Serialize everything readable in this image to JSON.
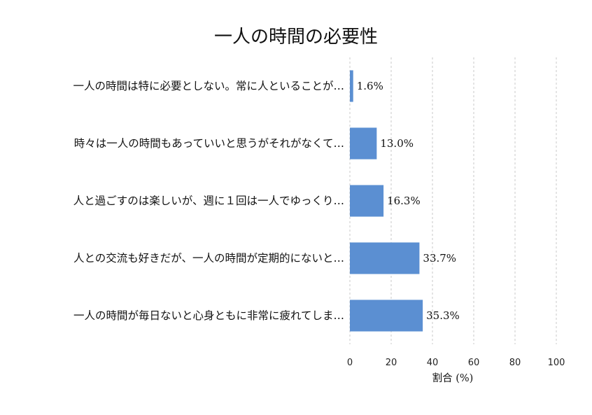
{
  "chart_data": {
    "type": "bar",
    "orientation": "horizontal",
    "title": "一人の時間の必要性",
    "xlabel": "割合 (%)",
    "ylabel": "",
    "xlim": [
      0,
      100
    ],
    "xticks": [
      "0",
      "20",
      "40",
      "60",
      "80",
      "100"
    ],
    "grid": "x-dashed",
    "categories": [
      "一人の時間は特に必要としない。常に人といることが…",
      "時々は一人の時間もあっていいと思うがそれがなくて…",
      "人と過ごすのは楽しいが、週に１回は一人でゆっくり…",
      "人との交流も好きだが、一人の時間が定期的にないと…",
      "一人の時間が毎日ないと心身ともに非常に疲れてしま…"
    ],
    "values": [
      1.6,
      13.0,
      16.3,
      33.7,
      35.3
    ],
    "value_labels": [
      "1.6%",
      "13.0%",
      "16.3%",
      "33.7%",
      "35.3%"
    ],
    "bar_color": "#5b8fd2"
  }
}
